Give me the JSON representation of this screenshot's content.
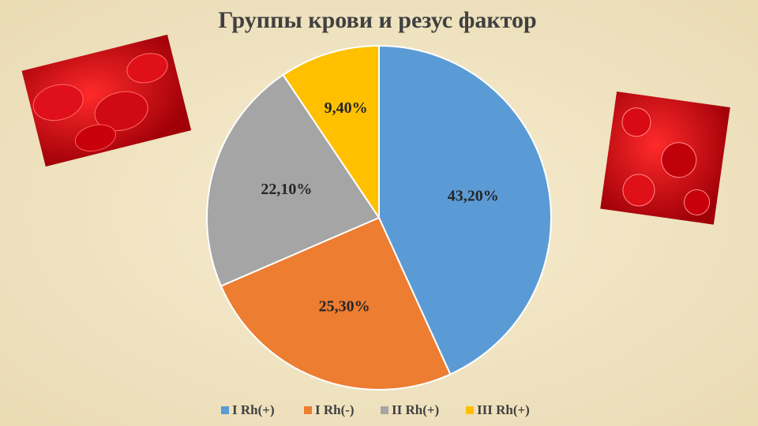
{
  "chart_data": {
    "type": "pie",
    "title": "Группы крови и резус фактор",
    "categories": [
      "I Rh(+)",
      "I Rh(-)",
      "II Rh(+)",
      "III Rh(+)"
    ],
    "values": [
      43.2,
      25.3,
      22.1,
      9.4
    ],
    "value_labels": [
      "43,20%",
      "25,30%",
      "22,10%",
      "9,40%"
    ],
    "colors": [
      "#5b9bd5",
      "#ed7d31",
      "#a5a5a5",
      "#ffc000"
    ],
    "legend": "bottom"
  }
}
